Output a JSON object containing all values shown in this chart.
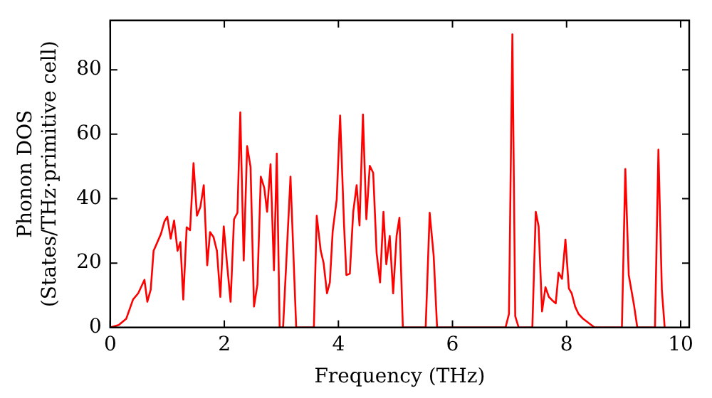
{
  "chart_data": {
    "type": "line",
    "xlabel": "Frequency (THz)",
    "ylabel": "Phonon DOS\n(States/THz·primitive cell)",
    "xlim": [
      0,
      10.15
    ],
    "ylim": [
      0,
      95.3
    ],
    "xticks": [
      0,
      2,
      4,
      6,
      8,
      10
    ],
    "yticks": [
      0,
      20,
      40,
      60,
      80
    ],
    "grid": false,
    "legend": false,
    "marker": "none",
    "line_style": "solid",
    "series": [
      {
        "color": "#ff0000",
        "x": [
          0,
          0.15,
          0.28,
          0.4,
          0.49,
          0.6,
          0.65,
          0.71,
          0.76,
          0.89,
          0.95,
          1.0,
          1.06,
          1.12,
          1.18,
          1.23,
          1.28,
          1.34,
          1.4,
          1.46,
          1.52,
          1.58,
          1.64,
          1.7,
          1.75,
          1.81,
          1.87,
          1.93,
          1.99,
          2.05,
          2.11,
          2.17,
          2.23,
          2.28,
          2.34,
          2.4,
          2.46,
          2.52,
          2.58,
          2.64,
          2.7,
          2.75,
          2.81,
          2.87,
          2.92,
          2.97,
          3.03,
          3.16,
          3.26,
          3.57,
          3.62,
          3.69,
          3.74,
          3.8,
          3.85,
          3.9,
          3.97,
          4.03,
          4.1,
          4.14,
          4.2,
          4.26,
          4.32,
          4.37,
          4.43,
          4.49,
          4.55,
          4.61,
          4.67,
          4.73,
          4.79,
          4.84,
          4.9,
          4.96,
          5.02,
          5.07,
          5.13,
          5.53,
          5.6,
          5.67,
          5.73,
          6.93,
          6.99,
          7.05,
          7.1,
          7.16,
          7.4,
          7.46,
          7.51,
          7.57,
          7.63,
          7.69,
          7.75,
          7.81,
          7.86,
          7.92,
          7.98,
          8.04,
          8.09,
          8.15,
          8.21,
          8.29,
          8.38,
          8.49,
          8.97,
          9.03,
          9.09,
          9.18,
          9.24,
          9.55,
          9.61,
          9.67,
          9.72
        ],
        "values": [
          0,
          0.8,
          2.7,
          8.7,
          10.6,
          14.8,
          8,
          11.8,
          23.8,
          29.1,
          32.9,
          34.4,
          27.6,
          33.2,
          23.8,
          26.5,
          8.7,
          31.1,
          30.2,
          51,
          34.7,
          37.4,
          44.2,
          19.3,
          29.6,
          28.1,
          23.8,
          9.5,
          31.4,
          19.3,
          8,
          33.6,
          35.6,
          66.8,
          20.8,
          56.3,
          49.8,
          6.5,
          13.3,
          46.8,
          43.4,
          35.9,
          50.7,
          17.8,
          54,
          0,
          0,
          46.8,
          0,
          0,
          34.7,
          23.8,
          20.1,
          10.6,
          14,
          29.9,
          39.7,
          65.8,
          31.4,
          16.3,
          16.7,
          35.9,
          44.2,
          31.7,
          66.1,
          33.6,
          50.2,
          48,
          23.1,
          14,
          35.9,
          19.6,
          28.4,
          10.6,
          28.4,
          34.1,
          0,
          0,
          35.6,
          22.3,
          0,
          0,
          4.2,
          91,
          3.5,
          0,
          0,
          35.9,
          31.4,
          5,
          12.5,
          9.5,
          8.4,
          7.5,
          17,
          15.1,
          27.3,
          12.1,
          10.6,
          6.5,
          4.2,
          2.7,
          1.5,
          0,
          0,
          49.2,
          16.3,
          7.2,
          0,
          0,
          55.2,
          11.8,
          0
        ]
      }
    ]
  }
}
